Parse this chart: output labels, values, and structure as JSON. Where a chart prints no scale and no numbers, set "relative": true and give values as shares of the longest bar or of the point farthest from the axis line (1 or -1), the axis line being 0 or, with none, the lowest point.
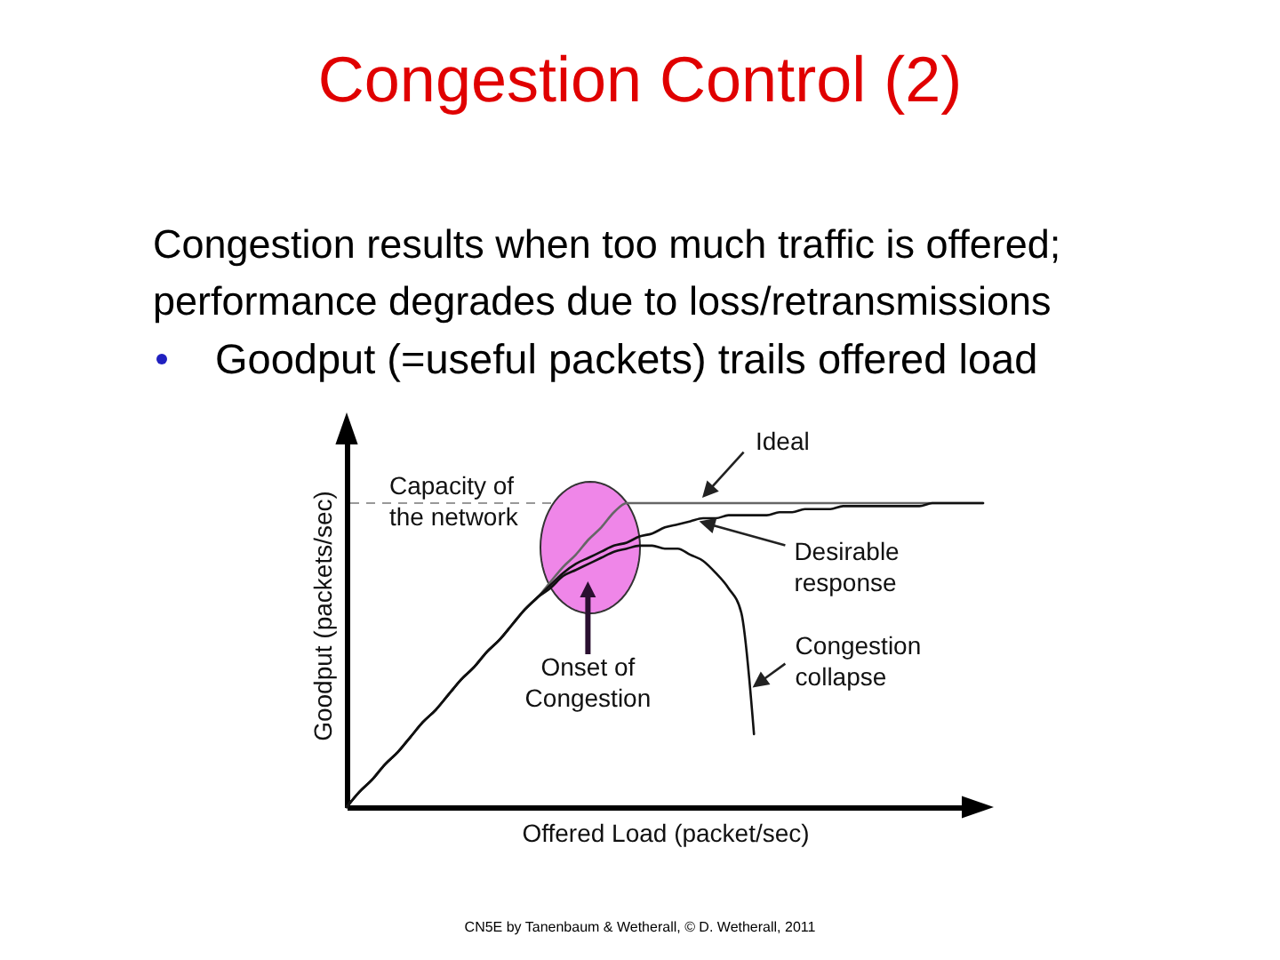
{
  "chart_data": {
    "type": "line",
    "title": "Congestion Control (2)",
    "subtitle": "Congestion results when too much traffic is offered; performance degrades due to loss/retransmissions",
    "xlabel": "Offered Load (packet/sec)",
    "ylabel": "Goodput (packets/sec)",
    "relative": true,
    "categories": [
      null,
      null,
      null,
      null,
      null,
      null,
      null,
      null,
      null,
      null,
      null,
      null,
      null,
      null,
      null,
      null,
      null,
      null,
      null,
      null,
      null,
      null,
      null,
      null,
      null,
      null,
      null,
      null,
      null,
      null,
      null,
      null,
      null,
      null,
      null,
      null,
      null,
      null,
      null,
      null,
      null,
      null,
      null,
      null,
      null,
      null,
      null,
      null,
      null,
      null,
      null
    ],
    "series": [
      {
        "name": "Ideal",
        "color": "#666666",
        "values": [
          0,
          0.05,
          0.09,
          0.14,
          0.18,
          0.23,
          0.28,
          0.32,
          0.37,
          0.42,
          0.46,
          0.51,
          0.55,
          0.6,
          0.65,
          0.69,
          0.74,
          0.79,
          0.83,
          0.88,
          0.92,
          0.97,
          1,
          1,
          1,
          1,
          1,
          1,
          1,
          1,
          1,
          1,
          1,
          1,
          1,
          1,
          1,
          1,
          1,
          1,
          1,
          1,
          1,
          1,
          1,
          1,
          1,
          1,
          1,
          1,
          1
        ]
      },
      {
        "name": "Desirable response",
        "color": "#111111",
        "values": [
          0,
          0.05,
          0.09,
          0.14,
          0.18,
          0.23,
          0.28,
          0.32,
          0.37,
          0.42,
          0.46,
          0.51,
          0.55,
          0.6,
          0.65,
          0.69,
          0.73,
          0.77,
          0.8,
          0.82,
          0.84,
          0.86,
          0.87,
          0.89,
          0.9,
          0.92,
          0.93,
          0.94,
          0.95,
          0.95,
          0.96,
          0.96,
          0.96,
          0.96,
          0.97,
          0.97,
          0.98,
          0.98,
          0.98,
          0.99,
          0.99,
          0.99,
          0.99,
          0.99,
          0.99,
          0.99,
          1,
          1,
          1,
          1,
          1
        ]
      },
      {
        "name": "Congestion collapse",
        "color": "#111111",
        "values": [
          0,
          0.05,
          0.09,
          0.14,
          0.18,
          0.23,
          0.28,
          0.32,
          0.37,
          0.42,
          0.46,
          0.51,
          0.55,
          0.6,
          0.65,
          0.69,
          0.72,
          0.76,
          0.78,
          0.8,
          0.82,
          0.84,
          0.85,
          0.86,
          0.86,
          0.85,
          0.85,
          0.83,
          0.81,
          0.77,
          0.72,
          0.64,
          0.24,
          null,
          null,
          null,
          null,
          null,
          null,
          null,
          null,
          null,
          null,
          null,
          null,
          null,
          null,
          null,
          null,
          null,
          null
        ]
      }
    ],
    "ref_lines": [
      {
        "axis": "y",
        "value": 1,
        "label": "Capacity of the network",
        "color": "#999999",
        "line_style": "dashed"
      }
    ],
    "annotations": [
      "Goodput (=useful packets) trails offered load",
      "Onset of Congestion",
      "CN5E by Tanenbaum & Wetherall, © D. Wetherall, 2011"
    ]
  }
}
